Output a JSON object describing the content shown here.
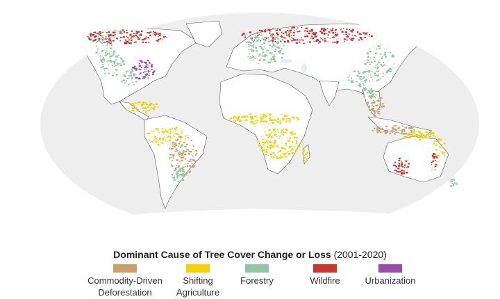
{
  "legend": {
    "title_bold": "Dominant Cause of Tree Cover Change or Loss",
    "title_regular": "(2001-2020)",
    "items": [
      {
        "line1": "Commodity-Driven",
        "line2": "Deforestation",
        "color": "#c9a06a"
      },
      {
        "line1": "Shifting",
        "line2": "Agriculture",
        "color": "#f5d000"
      },
      {
        "line1": "Forestry",
        "line2": "",
        "color": "#93c4a6"
      },
      {
        "line1": "Wildfire",
        "line2": "",
        "color": "#c8372d"
      },
      {
        "line1": "Urbanization",
        "line2": "",
        "color": "#984ea3"
      }
    ]
  },
  "colors": {
    "ocean": "#eeeeee",
    "land": "#ffffff",
    "border": "#555555"
  }
}
